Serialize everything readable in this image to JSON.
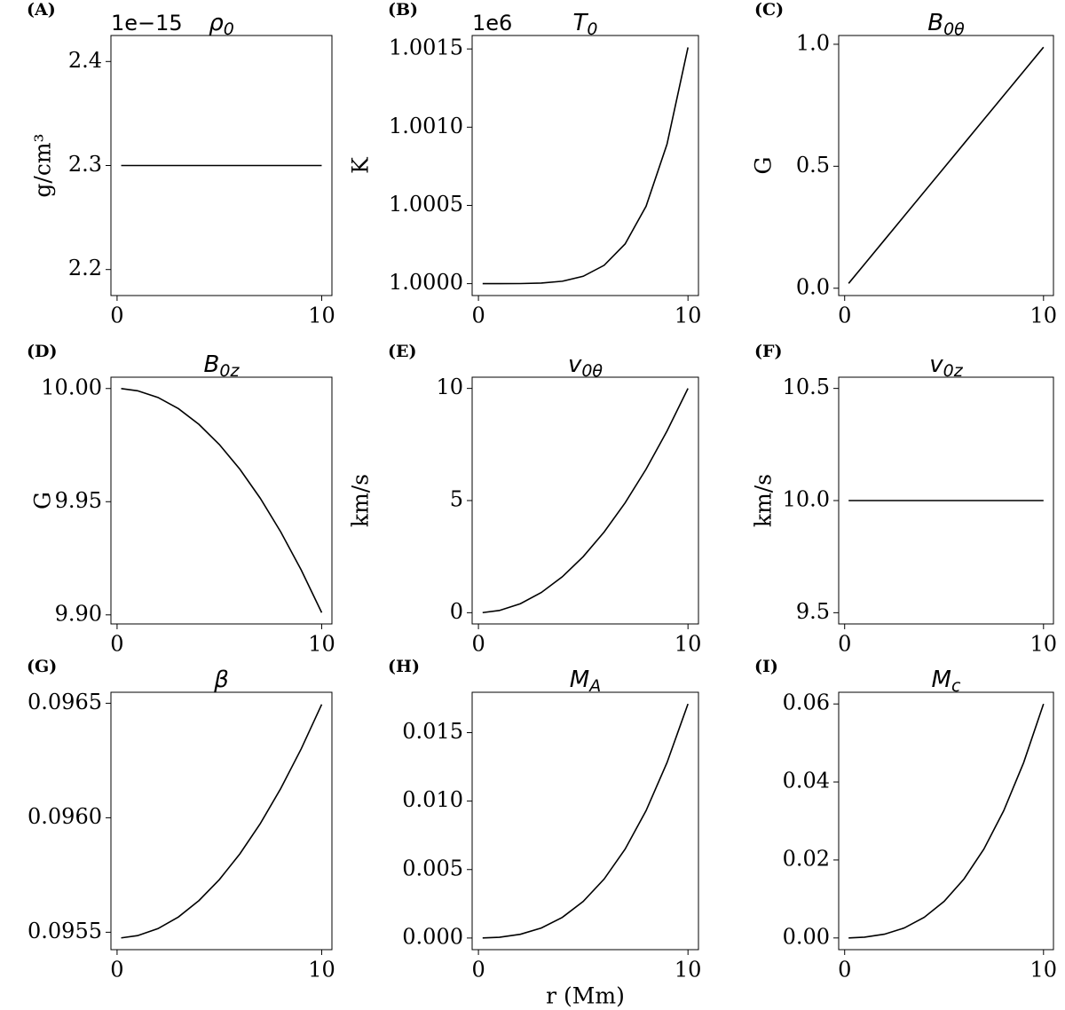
{
  "chart_data": [
    {
      "type": "line",
      "panel": "(A)",
      "title": {
        "base": "ρ",
        "sub": "0"
      },
      "offset_text": "1e−15",
      "ylabel": "g/cm³",
      "color": "#000000",
      "x": [
        0.2,
        1,
        2,
        3,
        4,
        5,
        6,
        7,
        8,
        9,
        10
      ],
      "values": [
        2.3,
        2.3,
        2.3,
        2.3,
        2.3,
        2.3,
        2.3,
        2.3,
        2.3,
        2.3,
        2.3
      ],
      "xlim": [
        -0.3,
        10.5
      ],
      "xticks": [
        0,
        10
      ],
      "ylim": [
        2.175,
        2.425
      ],
      "yticks": [
        2.2,
        2.3,
        2.4
      ]
    },
    {
      "type": "line",
      "panel": "(B)",
      "title": {
        "base": "T",
        "sub": "0"
      },
      "offset_text": "1e6",
      "ylabel": "K",
      "color": "#000000",
      "x": [
        0.2,
        1,
        2,
        3,
        4,
        5,
        6,
        7,
        8,
        9,
        10
      ],
      "values": [
        1.0,
        1.0,
        1.0000005,
        1.0000037,
        1.0000155,
        1.0000472,
        1.0001174,
        1.0002538,
        1.0004948,
        1.0008916,
        1.00151
      ],
      "xlim": [
        -0.3,
        10.5
      ],
      "xticks": [
        0,
        10
      ],
      "ylim": [
        0.999924,
        1.001586
      ],
      "yticks": [
        {
          "value": 1.0,
          "label": "1.0000"
        },
        1.0005,
        {
          "value": 1.001,
          "label": "1.0010"
        },
        1.0015
      ]
    },
    {
      "type": "line",
      "panel": "(C)",
      "title": {
        "base": "B",
        "sub": "0θ"
      },
      "ylabel": "G",
      "color": "#000000",
      "x": [
        0.2,
        1,
        2,
        3,
        4,
        5,
        6,
        7,
        8,
        9,
        10
      ],
      "values": [
        0.0198,
        0.0988,
        0.1976,
        0.2964,
        0.3952,
        0.494,
        0.5928,
        0.6916,
        0.7904,
        0.8892,
        0.988
      ],
      "xlim": [
        -0.3,
        10.5
      ],
      "xticks": [
        0,
        10
      ],
      "ylim": [
        -0.03,
        1.036
      ],
      "yticks": [
        {
          "value": 0,
          "label": "0.0"
        },
        0.5,
        {
          "value": 1,
          "label": "1.0"
        }
      ]
    },
    {
      "type": "line",
      "panel": "(D)",
      "title": {
        "base": "B",
        "sub": "0z"
      },
      "ylabel": "G",
      "color": "#000000",
      "x": [
        0.2,
        1,
        2,
        3,
        4,
        5,
        6,
        7,
        8,
        9,
        10
      ],
      "values": [
        9.99996,
        9.99901,
        9.99604,
        9.99109,
        9.98416,
        9.97525,
        9.96436,
        9.95149,
        9.93664,
        9.91981,
        9.901
      ],
      "xlim": [
        -0.3,
        10.5
      ],
      "xticks": [
        0,
        10
      ],
      "ylim": [
        9.896,
        10.005
      ],
      "yticks": [
        {
          "value": 9.9,
          "label": "9.90"
        },
        9.95,
        {
          "value": 10,
          "label": "10.00"
        }
      ]
    },
    {
      "type": "line",
      "panel": "(E)",
      "title": {
        "base": "v",
        "sub": "0θ"
      },
      "ylabel": "km/s",
      "color": "#000000",
      "x": [
        0.2,
        1,
        2,
        3,
        4,
        5,
        6,
        7,
        8,
        9,
        10
      ],
      "values": [
        0.004,
        0.1,
        0.4,
        0.9,
        1.6,
        2.5,
        3.6,
        4.9,
        6.4,
        8.1,
        10
      ],
      "xlim": [
        -0.3,
        10.5
      ],
      "xticks": [
        0,
        10
      ],
      "ylim": [
        -0.5,
        10.5
      ],
      "yticks": [
        0,
        5,
        10
      ]
    },
    {
      "type": "line",
      "panel": "(F)",
      "title": {
        "base": "v",
        "sub": "0z"
      },
      "ylabel": "km/s",
      "color": "#000000",
      "x": [
        0.2,
        1,
        2,
        3,
        4,
        5,
        6,
        7,
        8,
        9,
        10
      ],
      "values": [
        10,
        10,
        10,
        10,
        10,
        10,
        10,
        10,
        10,
        10,
        10
      ],
      "xlim": [
        -0.3,
        10.5
      ],
      "xticks": [
        0,
        10
      ],
      "ylim": [
        9.45,
        10.55
      ],
      "yticks": [
        9.5,
        {
          "value": 10,
          "label": "10.0"
        },
        10.5
      ]
    },
    {
      "type": "line",
      "panel": "(G)",
      "title": {
        "base": "β"
      },
      "color": "#000000",
      "x": [
        0.2,
        1,
        2,
        3,
        4,
        5,
        6,
        7,
        8,
        9,
        10
      ],
      "values": [
        0.0954754,
        0.0954852,
        0.0955158,
        0.0955668,
        0.0956382,
        0.09573,
        0.0958422,
        0.0959748,
        0.0961278,
        0.0963012,
        0.096495
      ],
      "xlim": [
        -0.3,
        10.5
      ],
      "xticks": [
        0,
        10
      ],
      "ylim": [
        0.095424,
        0.096548
      ],
      "yticks": [
        0.0955,
        {
          "value": 0.096,
          "label": "0.0960"
        },
        0.0965
      ]
    },
    {
      "type": "line",
      "panel": "(H)",
      "title": {
        "base": "M",
        "sub": "A"
      },
      "xlabel": "r (Mm)",
      "color": "#000000",
      "x": [
        0.2,
        1,
        2,
        3,
        4,
        5,
        6,
        7,
        8,
        9,
        10
      ],
      "values": [
        1.8e-06,
        5.56e-05,
        0.0002736,
        0.000731,
        0.0015048,
        0.0026719,
        0.0043092,
        0.0064937,
        0.0093024,
        0.0128122,
        0.0171
      ],
      "xlim": [
        -0.3,
        10.5
      ],
      "xticks": [
        0,
        10
      ],
      "ylim": [
        -0.00085,
        0.01795
      ],
      "yticks": [
        {
          "value": 0,
          "label": "0.000"
        },
        0.005,
        {
          "value": 0.01,
          "label": "0.010"
        },
        0.015
      ]
    },
    {
      "type": "line",
      "panel": "(I)",
      "title": {
        "base": "M",
        "sub": "c"
      },
      "color": "#000000",
      "x": [
        0.2,
        1,
        2,
        3,
        4,
        5,
        6,
        7,
        8,
        9,
        10
      ],
      "values": [
        6.4e-06,
        0.000195,
        0.00096,
        0.002565,
        0.00528,
        0.009375,
        0.01512,
        0.022785,
        0.03264,
        0.044955,
        0.06
      ],
      "xlim": [
        -0.3,
        10.5
      ],
      "xticks": [
        0,
        10
      ],
      "ylim": [
        -0.003,
        0.063
      ],
      "yticks": [
        {
          "value": 0,
          "label": "0.00"
        },
        0.02,
        0.04,
        0.06
      ]
    }
  ]
}
